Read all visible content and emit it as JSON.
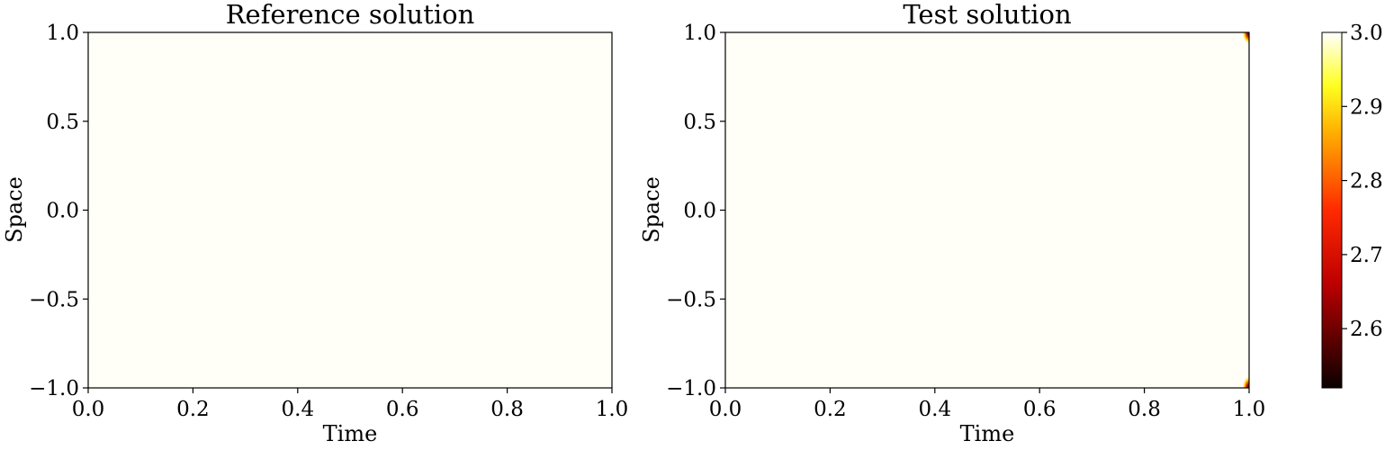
{
  "figure": {
    "colormap": "hot",
    "field_color": "#fffff8",
    "colorbar": {
      "range": [
        2.52,
        3.0
      ],
      "tick_values": [
        3.0,
        2.9,
        2.8,
        2.7,
        2.6
      ],
      "tick_labels": [
        "3.0",
        "2.9",
        "2.8",
        "2.7",
        "2.6"
      ]
    }
  },
  "chart_data": [
    {
      "type": "heatmap",
      "title": "Reference solution",
      "xlabel": "Time",
      "ylabel": "Space",
      "xlim": [
        0.0,
        1.0
      ],
      "ylim": [
        -1.0,
        1.0
      ],
      "x_ticks": [
        "0.0",
        "0.2",
        "0.4",
        "0.6",
        "0.8",
        "1.0"
      ],
      "y_ticks": [
        "1.0",
        "0.5",
        "0.0",
        "−0.5",
        "−1.0"
      ],
      "value_description_uniform": 3.0,
      "hotspots": []
    },
    {
      "type": "heatmap",
      "title": "Test solution",
      "xlabel": "Time",
      "ylabel": "Space",
      "xlim": [
        0.0,
        1.0
      ],
      "ylim": [
        -1.0,
        1.0
      ],
      "x_ticks": [
        "0.0",
        "0.2",
        "0.4",
        "0.6",
        "0.8",
        "1.0"
      ],
      "y_ticks": [
        "1.0",
        "0.5",
        "0.0",
        "−0.5",
        "−1.0"
      ],
      "value_description_uniform": 3.0,
      "hotspots": [
        {
          "x": 1.0,
          "y": 1.0,
          "value": 2.55
        },
        {
          "x": 1.0,
          "y": -1.0,
          "value": 2.6
        }
      ]
    }
  ]
}
